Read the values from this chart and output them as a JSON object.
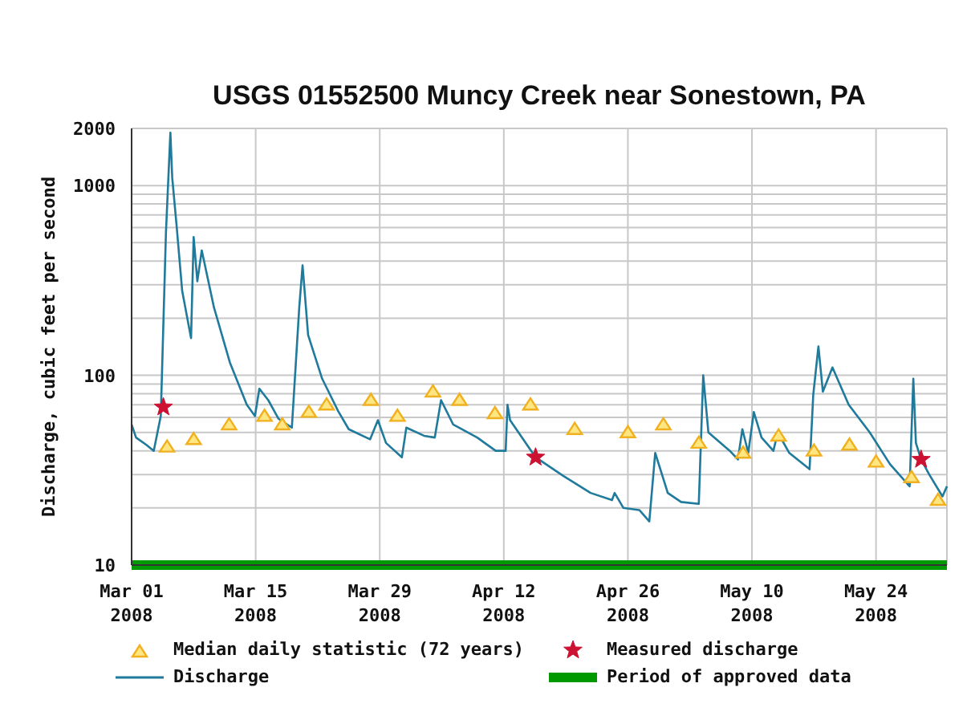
{
  "chart_data": {
    "type": "line",
    "title": "USGS 01552500 Muncy Creek near Sonestown, PA",
    "ylabel": "Discharge, cubic feet per second",
    "xlim": [
      "2008-03-01",
      "2008-06-01"
    ],
    "xticks": [
      {
        "value": "2008-03-01",
        "label": "Mar 01 2008"
      },
      {
        "value": "2008-03-15",
        "label": "Mar 15 2008"
      },
      {
        "value": "2008-03-29",
        "label": "Mar 29 2008"
      },
      {
        "value": "2008-04-12",
        "label": "Apr 12 2008"
      },
      {
        "value": "2008-04-26",
        "label": "Apr 26 2008"
      },
      {
        "value": "2008-05-10",
        "label": "May 10 2008"
      },
      {
        "value": "2008-05-24",
        "label": "May 24 2008"
      }
    ],
    "ylim": [
      10,
      2000
    ],
    "log": "y",
    "yticks": [
      10,
      {
        "value": 20,
        "label": null
      },
      {
        "value": 30,
        "label": null
      },
      {
        "value": 40,
        "label": null
      },
      {
        "value": 50,
        "label": null
      },
      {
        "value": 60,
        "label": null
      },
      {
        "value": 70,
        "label": null
      },
      {
        "value": 80,
        "label": null
      },
      {
        "value": 90,
        "label": null
      },
      100,
      {
        "value": 200,
        "label": null
      },
      {
        "value": 300,
        "label": null
      },
      {
        "value": 400,
        "label": null
      },
      {
        "value": 500,
        "label": null
      },
      {
        "value": 600,
        "label": null
      },
      {
        "value": 700,
        "label": null
      },
      {
        "value": 800,
        "label": null
      },
      {
        "value": 900,
        "label": null
      },
      1000,
      2000
    ],
    "grid": true,
    "legend": "bottom",
    "series": [
      {
        "name": "Median daily statistic (72 years)",
        "type": "scatter",
        "marker": "triangle",
        "color": "#f0b020",
        "x": [
          "2008-03-05",
          "2008-03-08",
          "2008-03-12",
          "2008-03-16",
          "2008-03-18",
          "2008-03-21",
          "2008-03-23",
          "2008-03-28",
          "2008-03-31",
          "2008-04-04",
          "2008-04-07",
          "2008-04-11",
          "2008-04-15",
          "2008-04-20",
          "2008-04-26",
          "2008-04-30",
          "2008-05-04",
          "2008-05-09",
          "2008-05-13",
          "2008-05-17",
          "2008-05-21",
          "2008-05-24",
          "2008-05-28",
          "2008-05-31"
        ],
        "values": [
          42,
          46,
          55,
          61,
          55,
          64,
          70,
          74,
          61,
          82,
          74,
          63,
          70,
          52,
          50,
          55,
          44,
          39,
          48,
          40,
          43,
          35,
          29,
          22
        ]
      },
      {
        "name": "Measured discharge",
        "type": "scatter",
        "marker": "star",
        "color": "#cc1133",
        "x": [
          "2008-03-04T14:00",
          "2008-04-15T14:00",
          "2008-05-29T02:00"
        ],
        "values": [
          68,
          37,
          36
        ]
      },
      {
        "name": "Discharge",
        "marker": "none",
        "color": "#1f7a9c",
        "x": [
          "2008-03-01T00:00",
          "2008-03-01T12:00",
          "2008-03-02T16:00",
          "2008-03-03T12:00",
          "2008-03-04T07:00",
          "2008-03-04T21:00",
          "2008-03-05T09:00",
          "2008-03-05T14:00",
          "2008-03-06T02:00",
          "2008-03-06T17:00",
          "2008-03-07T17:00",
          "2008-03-08T00:00",
          "2008-03-08T10:00",
          "2008-03-08T22:00",
          "2008-03-10T07:00",
          "2008-03-12T02:00",
          "2008-03-14T00:00",
          "2008-03-14T22:00",
          "2008-03-15T10:00",
          "2008-03-16T10:00",
          "2008-03-17T14:00",
          "2008-03-19T02:00",
          "2008-03-19T22:00",
          "2008-03-20T07:00",
          "2008-03-20T22:00",
          "2008-03-22T12:00",
          "2008-03-24T07:00",
          "2008-03-25T12:00",
          "2008-03-27T22:00",
          "2008-03-28T19:00",
          "2008-03-29T17:00",
          "2008-03-31T12:00",
          "2008-04-01T00:00",
          "2008-04-03T00:00",
          "2008-04-04T05:00",
          "2008-04-04T22:00",
          "2008-04-06T07:00",
          "2008-04-09T00:00",
          "2008-04-11T02:00",
          "2008-04-12T05:00",
          "2008-04-12T10:00",
          "2008-04-12T17:00",
          "2008-04-15T14:00",
          "2008-04-18T17:00",
          "2008-04-21T19:00",
          "2008-04-24T05:00",
          "2008-04-24T12:00",
          "2008-04-25T12:00",
          "2008-04-27T07:00",
          "2008-04-28T10:00",
          "2008-04-29T02:00",
          "2008-04-30T12:00",
          "2008-05-02T00:00",
          "2008-05-04T00:00",
          "2008-05-04T12:00",
          "2008-05-05T02:00",
          "2008-05-07T12:00",
          "2008-05-08T10:00",
          "2008-05-08T22:00",
          "2008-05-09T14:00",
          "2008-05-10T05:00",
          "2008-05-11T02:00",
          "2008-05-12T10:00",
          "2008-05-12T22:00",
          "2008-05-14T05:00",
          "2008-05-16T12:00",
          "2008-05-16T22:00",
          "2008-05-17T12:00",
          "2008-05-18T00:00",
          "2008-05-19T02:00",
          "2008-05-20T22:00",
          "2008-05-23T07:00",
          "2008-05-25T14:00",
          "2008-05-27T19:00",
          "2008-05-28T05:00",
          "2008-05-28T12:00",
          "2008-05-29T02:00",
          "2008-05-30T00:00",
          "2008-05-31T12:00",
          "2008-06-01T00:00"
        ],
        "values": [
          55,
          47,
          43,
          40,
          61,
          565,
          1900,
          1100,
          610,
          278,
          157,
          535,
          313,
          455,
          228,
          117,
          70,
          61,
          85,
          74,
          59,
          53,
          228,
          380,
          163,
          96,
          65,
          52,
          46,
          58,
          44,
          37,
          53,
          48,
          47,
          74,
          55,
          47,
          40,
          40,
          70,
          58,
          37,
          29.5,
          24,
          22,
          24,
          20,
          19.5,
          17,
          39,
          24,
          21.5,
          21,
          100,
          50,
          40,
          36,
          52,
          39,
          64,
          47,
          40,
          50,
          39,
          32,
          79,
          142,
          82,
          110,
          70,
          50,
          34,
          26,
          96,
          44,
          36,
          30,
          23,
          26
        ]
      },
      {
        "name": "Period of approved data",
        "marker": "none",
        "color": "#009900",
        "x": [
          "2008-03-01",
          "2008-06-01"
        ],
        "values": [
          10,
          10
        ]
      }
    ]
  }
}
